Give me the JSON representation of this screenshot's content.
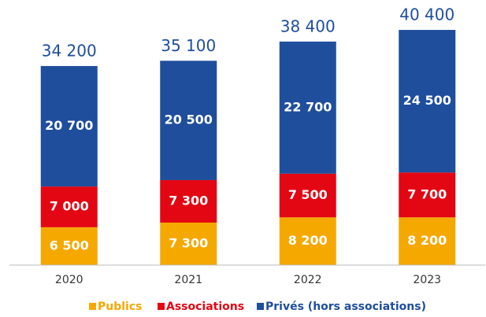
{
  "chart_data": {
    "type": "stacked_bar",
    "categories": [
      "2020",
      "2021",
      "2022",
      "2023"
    ],
    "series": [
      {
        "name": "Publics",
        "color": "#f5a800",
        "values": [
          6500,
          7300,
          8200,
          8200
        ],
        "value_labels": [
          "6 500",
          "7 300",
          "8 200",
          "8 200"
        ]
      },
      {
        "name": "Associations",
        "color": "#e30613",
        "values": [
          7000,
          7300,
          7500,
          7700
        ],
        "value_labels": [
          "7 000",
          "7 300",
          "7 500",
          "7 700"
        ]
      },
      {
        "name": "Privés (hors associations)",
        "color": "#1f4e9c",
        "values": [
          20700,
          20500,
          22700,
          24500
        ],
        "value_labels": [
          "20 700",
          "20 500",
          "22 700",
          "24 500"
        ]
      }
    ],
    "totals": {
      "values": [
        34200,
        35100,
        38400,
        40400
      ],
      "value_labels": [
        "34 200",
        "35 100",
        "38 400",
        "40 400"
      ]
    },
    "ylim": [
      0,
      45000
    ]
  }
}
